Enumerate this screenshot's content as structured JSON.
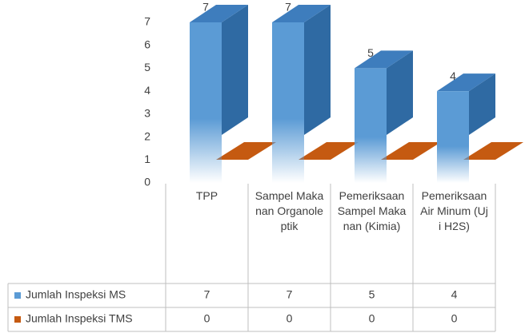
{
  "chart_data": {
    "type": "bar3d",
    "categories": [
      "TPP",
      "Sampel Makanan Organoleptik",
      "Pemeriksaan Sampel Makanan (Kimia)",
      "Pemeriksaan Air Minum (Uji H2S)"
    ],
    "series": [
      {
        "name": "Jumlah Inspeksi MS",
        "color": "#5b9bd5",
        "values": [
          7,
          7,
          5,
          4
        ]
      },
      {
        "name": "Jumlah Inspeksi TMS",
        "color": "#c55a11",
        "values": [
          0,
          0,
          0,
          0
        ]
      }
    ],
    "ylim": [
      0,
      7
    ],
    "yticks": [
      0,
      1,
      2,
      3,
      4,
      5,
      6,
      7
    ]
  }
}
